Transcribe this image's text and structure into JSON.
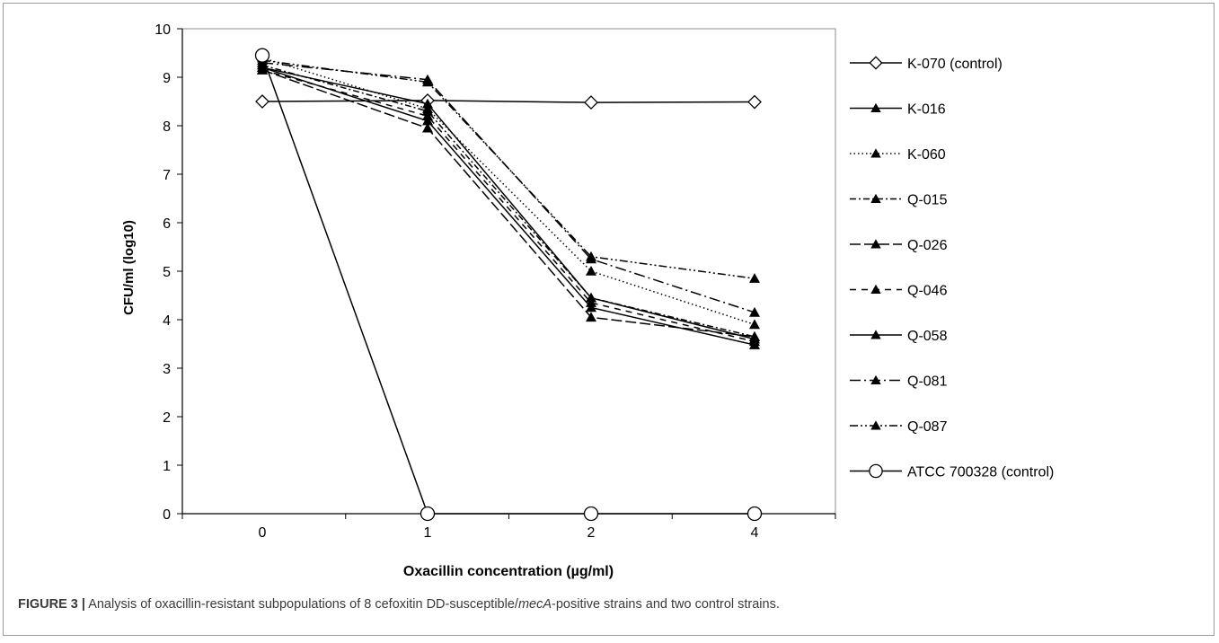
{
  "chart_data": {
    "type": "line",
    "title": "",
    "xlabel": "Oxacillin concentration (µg/ml)",
    "ylabel": "CFU/ml (log10)",
    "categories": [
      "0",
      "1",
      "2",
      "4"
    ],
    "ylim": [
      0,
      10
    ],
    "yticks": [
      "0",
      "1",
      "2",
      "3",
      "4",
      "5",
      "6",
      "7",
      "8",
      "9",
      "10"
    ],
    "grid": false,
    "legend_position": "right",
    "series": [
      {
        "name": "K-070 (control)",
        "values": [
          8.5,
          8.52,
          8.48,
          8.49
        ],
        "marker": "diamond-open",
        "dash": "solid"
      },
      {
        "name": "K-016",
        "values": [
          9.2,
          8.45,
          4.45,
          3.6
        ],
        "marker": "triangle",
        "dash": "solid"
      },
      {
        "name": "K-060",
        "values": [
          9.4,
          8.35,
          5.0,
          3.9
        ],
        "marker": "triangle",
        "dash": "dotted"
      },
      {
        "name": "Q-015",
        "values": [
          9.25,
          8.3,
          4.45,
          3.65
        ],
        "marker": "triangle",
        "dash": "dash-dot"
      },
      {
        "name": "Q-026",
        "values": [
          9.15,
          7.95,
          4.05,
          3.65
        ],
        "marker": "triangle",
        "dash": "long-dash"
      },
      {
        "name": "Q-046",
        "values": [
          9.15,
          8.2,
          4.35,
          3.55
        ],
        "marker": "triangle",
        "dash": "medium-dash"
      },
      {
        "name": "Q-058",
        "values": [
          9.2,
          8.1,
          4.25,
          3.48
        ],
        "marker": "triangle",
        "dash": "solid"
      },
      {
        "name": "Q-081",
        "values": [
          9.3,
          8.95,
          5.25,
          4.15
        ],
        "marker": "triangle",
        "dash": "long-dash-dot"
      },
      {
        "name": "Q-087",
        "values": [
          9.35,
          8.9,
          5.3,
          4.85
        ],
        "marker": "triangle",
        "dash": "dash-dot-dot"
      },
      {
        "name": "ATCC 700328 (control)",
        "values": [
          9.45,
          0,
          0,
          0
        ],
        "marker": "circle-open",
        "dash": "solid"
      }
    ]
  },
  "caption": {
    "label": "FIGURE 3 |",
    "text_before": " Analysis of oxacillin-resistant subpopulations of 8 cefoxitin DD-susceptible/",
    "gene": "mecA",
    "text_after": "-positive strains and two control strains."
  }
}
